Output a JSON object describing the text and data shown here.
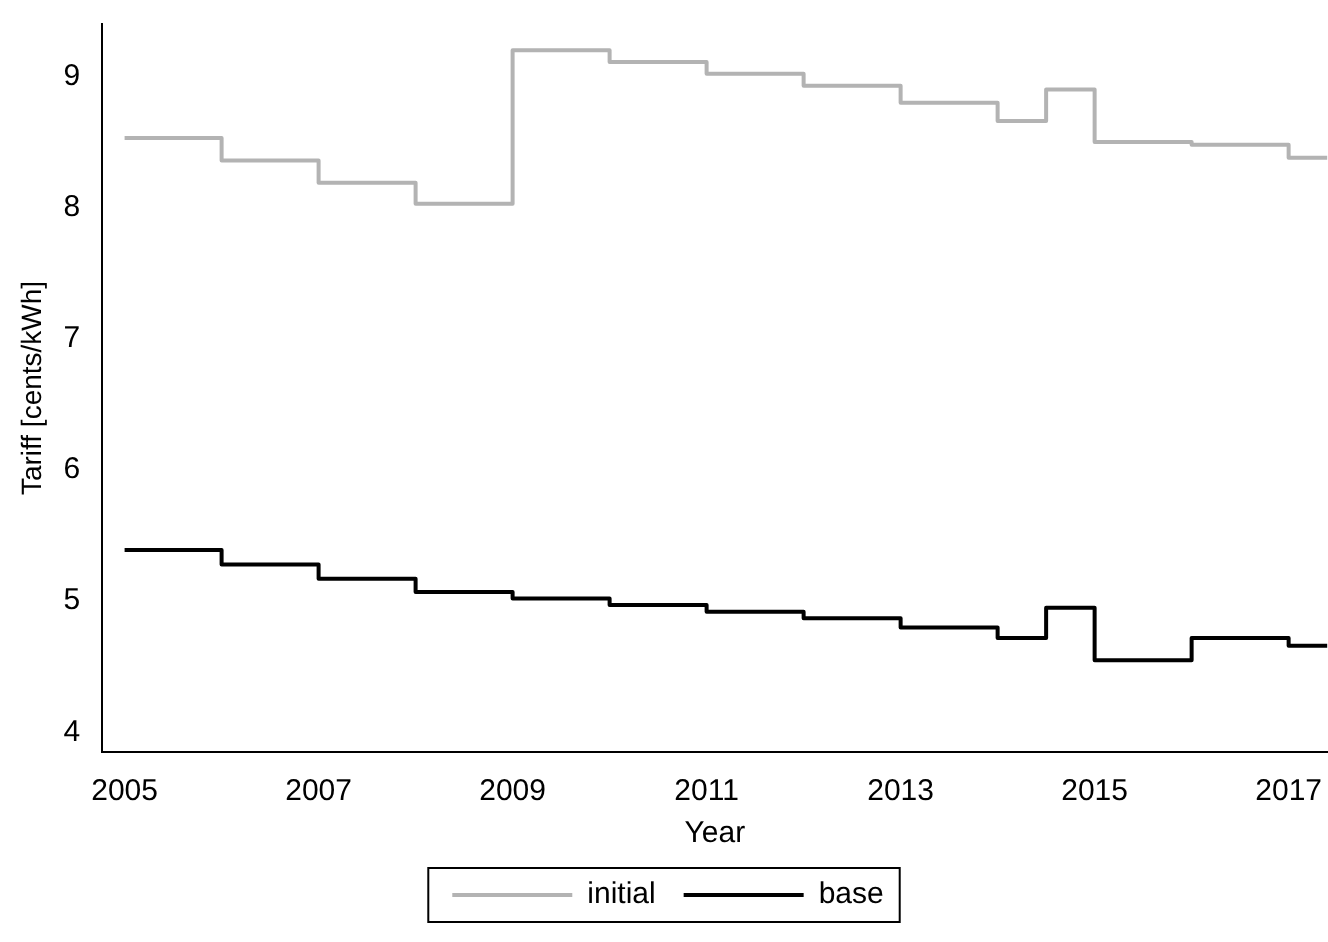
{
  "chart_data": {
    "type": "step",
    "xlabel": "Year",
    "ylabel": "Tariff [cents/kWh]",
    "x": [
      2005,
      2006,
      2007,
      2008,
      2009,
      2010,
      2011,
      2012,
      2013,
      2014,
      2014.5,
      2015,
      2016,
      2017,
      2017.4
    ],
    "series": [
      {
        "name": "initial",
        "color": "#b3b3b3",
        "values": [
          8.53,
          8.36,
          8.19,
          8.03,
          9.2,
          9.11,
          9.02,
          8.93,
          8.8,
          8.66,
          8.9,
          8.5,
          8.48,
          8.38,
          8.38
        ]
      },
      {
        "name": "base",
        "color": "#000000",
        "values": [
          5.39,
          5.28,
          5.17,
          5.07,
          5.02,
          4.97,
          4.92,
          4.87,
          4.8,
          4.72,
          4.95,
          4.55,
          4.72,
          4.66,
          4.66
        ]
      }
    ],
    "xlim": [
      2004.77,
      2017.4
    ],
    "xticks": [
      2005,
      2007,
      2009,
      2011,
      2013,
      2015,
      2017
    ],
    "ylim": [
      3.85,
      9.4
    ],
    "yticks": [
      4,
      5,
      6,
      7,
      8,
      9
    ],
    "grid": false,
    "legend": "bottom",
    "marker": "none",
    "line_style": "solid"
  }
}
